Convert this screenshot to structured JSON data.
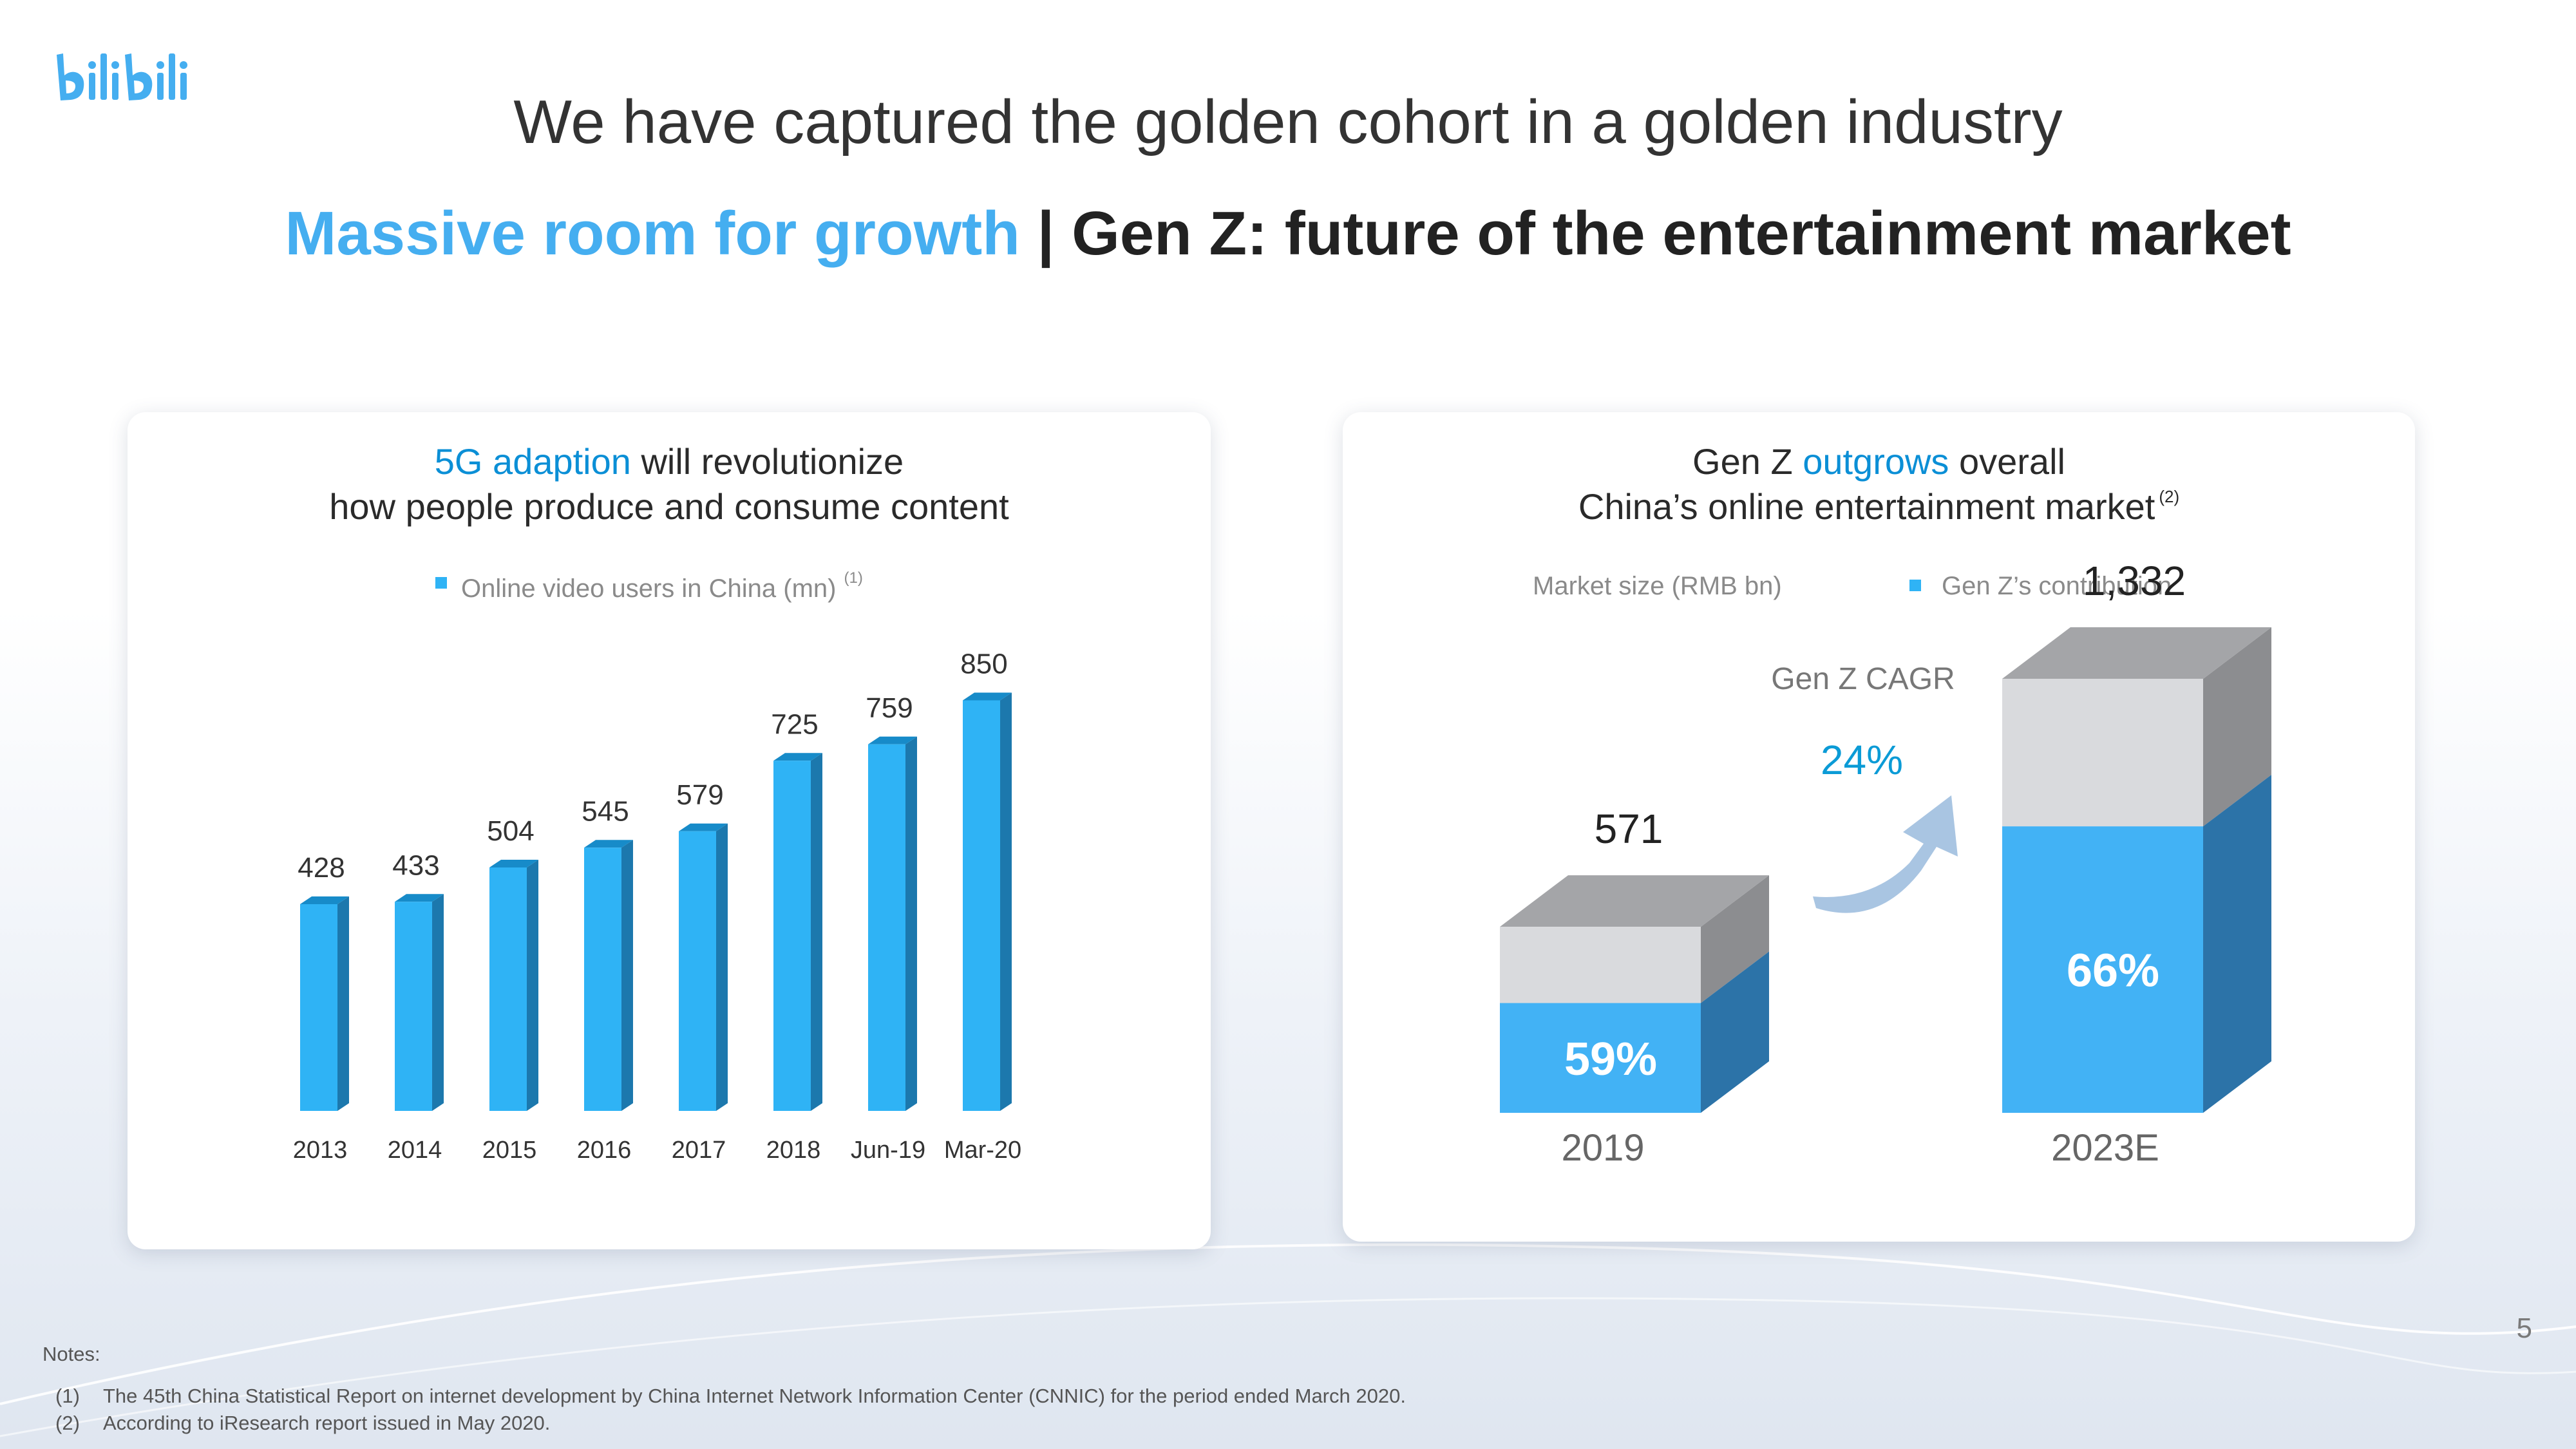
{
  "logo_text": "bilibili",
  "page_title": "We have captured the golden cohort in a golden industry",
  "subtitle": {
    "highlight": "Massive room for growth",
    "separator": " | ",
    "rest": "Gen Z: future of the entertainment market"
  },
  "colors": {
    "accent_blue": "#45aef0",
    "bar_blue": "#2fb3f5",
    "gray_top": "#d9dadd",
    "dark_text": "#222222"
  },
  "left_panel": {
    "title_accent": "5G adaption",
    "title_rest": " will revolutionize",
    "title_line2": "how people produce and consume content",
    "legend": "Online video users in China (mn)",
    "legend_note": "(1)"
  },
  "right_panel": {
    "title_line1_a": "Gen Z ",
    "title_line1_accent": "outgrows",
    "title_line1_b": " overall",
    "title_line2": "China’s online entertainment market",
    "title_note": "(2)",
    "legend_market": "Market size (RMB bn)",
    "legend_genz": "Gen Z’s contribution",
    "cagr_label": "Gen Z CAGR",
    "cagr_value": "24%"
  },
  "chart_data": [
    {
      "type": "bar",
      "categories": [
        "2013",
        "2014",
        "2015",
        "2016",
        "2017",
        "2018",
        "Jun-19",
        "Mar-20"
      ],
      "series": [
        {
          "name": "Online video users in China (mn)",
          "values": [
            428,
            433,
            504,
            545,
            579,
            725,
            759,
            850
          ]
        }
      ],
      "value_labels": [
        "428",
        "433",
        "504",
        "545",
        "579",
        "725",
        "759",
        "850"
      ],
      "ylim": [
        0,
        900
      ]
    },
    {
      "type": "bar",
      "stacked": true,
      "categories": [
        "2019",
        "2023E"
      ],
      "totals": [
        571,
        1332
      ],
      "total_labels": [
        "571",
        "1,332"
      ],
      "gen_z_share_pct": [
        59,
        66
      ],
      "share_labels": [
        "59%",
        "66%"
      ]
    }
  ],
  "page_number": "5",
  "notes": {
    "heading": "Notes:",
    "items": [
      {
        "num": "(1)",
        "text": "The 45th China Statistical Report on internet development by China Internet Network Information Center (CNNIC) for the period ended March 2020."
      },
      {
        "num": "(2)",
        "text": "According to iResearch report issued in May 2020."
      }
    ]
  }
}
